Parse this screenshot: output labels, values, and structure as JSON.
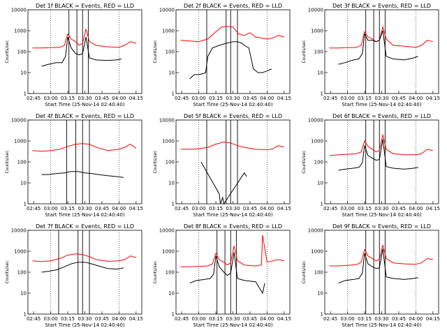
{
  "chart_data": [
    {
      "type": "line",
      "title": "Det 1f BLACK = Events, RED = LLD",
      "xlabel": "Start Time (25-Nov-14 02:40:40)",
      "ylabel": "Counts/sec",
      "xticks": [
        "02:45",
        "03:00",
        "03:15",
        "03:30",
        "03:45",
        "04:00",
        "04:15"
      ],
      "yticks": [
        "1",
        "10",
        "100",
        "1000",
        "10000"
      ],
      "ylim": [
        1,
        10000
      ],
      "yscale": "log",
      "xlim": [
        "02:40",
        "04:20"
      ],
      "grid": "dotted vertical lines at 03:00 and 04:00",
      "markers": [
        "03:16",
        "03:23",
        "03:28",
        "03:33"
      ],
      "series": [
        {
          "name": "LLD",
          "color": "#ff0000",
          "x": [
            "02:44",
            "02:52",
            "03:00",
            "03:08",
            "03:12",
            "03:15",
            "03:18",
            "03:22",
            "03:25",
            "03:28",
            "03:31",
            "03:34",
            "03:40",
            "03:50",
            "04:00",
            "04:05",
            "04:10",
            "04:15"
          ],
          "values": [
            150,
            150,
            155,
            160,
            200,
            700,
            400,
            300,
            200,
            250,
            1200,
            300,
            200,
            170,
            160,
            200,
            300,
            250
          ]
        },
        {
          "name": "Events",
          "color": "#000000",
          "x": [
            "02:52",
            "02:58",
            "03:05",
            "03:10",
            "03:13",
            "03:15",
            "03:18",
            "03:22",
            "03:25",
            "03:28",
            "03:31",
            "03:34",
            "03:40",
            "03:50",
            "03:58",
            "04:02"
          ],
          "values": [
            20,
            25,
            30,
            30,
            60,
            500,
            150,
            80,
            70,
            80,
            500,
            50,
            40,
            38,
            40,
            45
          ]
        }
      ]
    },
    {
      "type": "line",
      "title": "Det 2f BLACK = Events, RED = LLD",
      "xlabel": "Start Time (25-Nov-14 02:40:40)",
      "ylabel": "Counts/sec",
      "xticks": [
        "02:45",
        "03:00",
        "03:15",
        "03:30",
        "03:45",
        "04:00",
        "04:15"
      ],
      "yticks": [
        "1",
        "10",
        "100",
        "1000",
        "10000"
      ],
      "ylim": [
        1,
        10000
      ],
      "yscale": "log",
      "xlim": [
        "02:40",
        "04:20"
      ],
      "grid": "dotted vertical lines at 03:00 and 04:00",
      "markers": [
        "03:07",
        "03:24",
        "03:28",
        "03:34"
      ],
      "series": [
        {
          "name": "LLD",
          "color": "#ff0000",
          "x": [
            "02:44",
            "02:52",
            "03:00",
            "03:08",
            "03:15",
            "03:20",
            "03:25",
            "03:30",
            "03:35",
            "03:40",
            "03:45",
            "03:50",
            "04:00",
            "04:05",
            "04:10",
            "04:15"
          ],
          "values": [
            350,
            320,
            300,
            400,
            900,
            1500,
            1600,
            1500,
            700,
            600,
            800,
            500,
            400,
            450,
            600,
            500
          ]
        },
        {
          "name": "Events",
          "color": "#000000",
          "x": [
            "02:52",
            "02:56",
            "03:00",
            "03:04",
            "03:06",
            "03:08",
            "03:12",
            "03:18",
            "03:24",
            "03:30",
            "03:34",
            "03:38",
            "03:40",
            "03:44",
            "03:48",
            "03:52",
            "03:56",
            "04:00",
            "04:04"
          ],
          "values": [
            5,
            8,
            8,
            9,
            10,
            60,
            150,
            200,
            250,
            300,
            300,
            250,
            200,
            150,
            15,
            10,
            10,
            12,
            15
          ]
        }
      ]
    },
    {
      "type": "line",
      "title": "Det 3f BLACK = Events, RED = LLD",
      "xlabel": "Start Time (25-Nov-14 02:40:40)",
      "ylabel": "Counts/sec",
      "xticks": [
        "02:45",
        "03:00",
        "03:15",
        "03:30",
        "03:45",
        "04:00",
        "04:15"
      ],
      "yticks": [
        "1",
        "10",
        "100",
        "1000",
        "10000"
      ],
      "ylim": [
        1,
        10000
      ],
      "yscale": "log",
      "xlim": [
        "02:40",
        "04:20"
      ],
      "grid": "dotted vertical lines at 03:00 and 04:00",
      "markers": [
        "03:16",
        "03:23",
        "03:28",
        "03:33"
      ],
      "series": [
        {
          "name": "LLD",
          "color": "#ff0000",
          "x": [
            "02:44",
            "02:52",
            "03:00",
            "03:08",
            "03:12",
            "03:15",
            "03:18",
            "03:22",
            "03:25",
            "03:28",
            "03:31",
            "03:34",
            "03:40",
            "03:50",
            "04:00",
            "04:05",
            "04:10",
            "04:15"
          ],
          "values": [
            150,
            150,
            155,
            160,
            200,
            900,
            500,
            400,
            300,
            350,
            1500,
            400,
            200,
            180,
            160,
            200,
            350,
            300
          ]
        },
        {
          "name": "Events",
          "color": "#000000",
          "x": [
            "02:52",
            "02:58",
            "03:05",
            "03:10",
            "03:13",
            "03:15",
            "03:18",
            "03:22",
            "03:25",
            "03:28",
            "03:31",
            "03:34",
            "03:40",
            "03:50",
            "03:58",
            "04:02"
          ],
          "values": [
            25,
            30,
            40,
            45,
            80,
            700,
            350,
            350,
            300,
            350,
            1000,
            60,
            45,
            40,
            50,
            60
          ]
        }
      ]
    },
    {
      "type": "line",
      "title": "Det 4f BLACK = Events, RED = LLD",
      "xlabel": "Start Time (25-Nov-14 02:40:40)",
      "ylabel": "Counts/sec",
      "xticks": [
        "02:45",
        "03:00",
        "03:15",
        "03:30",
        "03:45",
        "04:00",
        "04:15"
      ],
      "yticks": [
        "1",
        "10",
        "100",
        "1000",
        "10000"
      ],
      "ylim": [
        1,
        10000
      ],
      "yscale": "log",
      "xlim": [
        "02:40",
        "04:20"
      ],
      "grid": "dotted vertical lines at 03:00 and 04:00",
      "markers": [
        "03:14",
        "03:22",
        "03:28",
        "03:34"
      ],
      "series": [
        {
          "name": "LLD",
          "color": "#ff0000",
          "x": [
            "02:44",
            "02:52",
            "03:00",
            "03:08",
            "03:15",
            "03:22",
            "03:28",
            "03:34",
            "03:40",
            "03:50",
            "04:00",
            "04:05",
            "04:10",
            "04:15"
          ],
          "values": [
            350,
            320,
            350,
            400,
            550,
            700,
            750,
            700,
            500,
            350,
            400,
            500,
            700,
            450
          ]
        },
        {
          "name": "Events",
          "color": "#000000",
          "x": [
            "02:52",
            "02:58",
            "03:05",
            "03:12",
            "03:18",
            "03:24",
            "03:30",
            "03:36",
            "03:42",
            "03:50",
            "03:58",
            "04:04"
          ],
          "values": [
            25,
            25,
            28,
            30,
            35,
            35,
            30,
            28,
            25,
            22,
            20,
            18
          ]
        }
      ]
    },
    {
      "type": "line",
      "title": "Det 5f BLACK = Events, RED = LLD",
      "xlabel": "Start Time (25-Nov-14 02:40:40)",
      "ylabel": "Counts/sec",
      "xticks": [
        "02:45",
        "03:00",
        "03:15",
        "03:30",
        "03:45",
        "04:00",
        "04:15"
      ],
      "yticks": [
        "1",
        "10",
        "100",
        "1000",
        "10000"
      ],
      "ylim": [
        1,
        10000
      ],
      "yscale": "log",
      "xlim": [
        "02:40",
        "04:20"
      ],
      "grid": "dotted vertical lines at 03:00 and 04:00",
      "markers": [
        "03:07",
        "03:24",
        "03:28",
        "03:34"
      ],
      "series": [
        {
          "name": "LLD",
          "color": "#ff0000",
          "x": [
            "02:44",
            "02:52",
            "03:00",
            "03:08",
            "03:15",
            "03:22",
            "03:28",
            "03:34",
            "03:40",
            "03:50",
            "04:00",
            "04:05",
            "04:10",
            "04:15"
          ],
          "values": [
            400,
            400,
            420,
            500,
            700,
            900,
            800,
            600,
            500,
            400,
            380,
            420,
            600,
            500
          ]
        },
        {
          "name": "Events",
          "color": "#000000",
          "x": [
            "03:02",
            "03:18",
            "03:19",
            "03:21",
            "03:22",
            "03:40",
            "03:42"
          ],
          "values": [
            100,
            3,
            1,
            2,
            1,
            30,
            20
          ]
        }
      ]
    },
    {
      "type": "line",
      "title": "Det 6f BLACK = Events, RED = LLD",
      "xlabel": "Start Time (25-Nov-14 02:40:40)",
      "ylabel": "Counts/sec",
      "xticks": [
        "02:45",
        "03:00",
        "03:15",
        "03:30",
        "03:45",
        "04:00",
        "04:15"
      ],
      "yticks": [
        "1",
        "10",
        "100",
        "1000",
        "10000"
      ],
      "ylim": [
        1,
        10000
      ],
      "yscale": "log",
      "xlim": [
        "02:40",
        "04:20"
      ],
      "grid": "dotted vertical lines at 03:00 and 04:00",
      "markers": [
        "03:16",
        "03:23",
        "03:28",
        "03:33"
      ],
      "series": [
        {
          "name": "LLD",
          "color": "#ff0000",
          "x": [
            "02:44",
            "02:52",
            "03:00",
            "03:08",
            "03:12",
            "03:15",
            "03:18",
            "03:22",
            "03:25",
            "03:28",
            "03:31",
            "03:34",
            "03:40",
            "03:50",
            "04:00",
            "04:05",
            "04:10",
            "04:15"
          ],
          "values": [
            200,
            220,
            230,
            250,
            300,
            1000,
            550,
            400,
            300,
            350,
            2000,
            400,
            250,
            220,
            220,
            250,
            400,
            350
          ]
        },
        {
          "name": "Events",
          "color": "#000000",
          "x": [
            "02:52",
            "02:58",
            "03:05",
            "03:10",
            "03:13",
            "03:15",
            "03:18",
            "03:22",
            "03:25",
            "03:28",
            "03:31",
            "03:34",
            "03:40",
            "03:50",
            "03:58",
            "04:02"
          ],
          "values": [
            40,
            45,
            50,
            55,
            90,
            600,
            200,
            150,
            120,
            130,
            1200,
            60,
            50,
            45,
            50,
            55
          ]
        }
      ]
    },
    {
      "type": "line",
      "title": "Det 7f BLACK = Events, RED = LLD",
      "xlabel": "Start Time (25-Nov-14 02:40:40)",
      "ylabel": "Counts/sec",
      "xticks": [
        "02:45",
        "03:00",
        "03:15",
        "03:30",
        "03:45",
        "04:00",
        "04:15"
      ],
      "yticks": [
        "1",
        "10",
        "100",
        "1000",
        "10000"
      ],
      "ylim": [
        1,
        10000
      ],
      "yscale": "log",
      "xlim": [
        "02:40",
        "04:20"
      ],
      "grid": "dotted vertical lines at 03:00 and 04:00",
      "markers": [
        "03:07",
        "03:24",
        "03:28",
        "03:34"
      ],
      "series": [
        {
          "name": "LLD",
          "color": "#ff0000",
          "x": [
            "02:44",
            "02:52",
            "03:00",
            "03:08",
            "03:15",
            "03:22",
            "03:28",
            "03:34",
            "03:40",
            "03:50",
            "04:00",
            "04:05",
            "04:10",
            "04:15"
          ],
          "values": [
            350,
            320,
            350,
            450,
            650,
            750,
            700,
            550,
            400,
            330,
            350,
            400,
            600,
            500
          ]
        },
        {
          "name": "Events",
          "color": "#000000",
          "x": [
            "02:52",
            "02:58",
            "03:05",
            "03:12",
            "03:18",
            "03:24",
            "03:30",
            "03:36",
            "03:42",
            "03:50",
            "03:58",
            "04:04"
          ],
          "values": [
            100,
            110,
            130,
            180,
            250,
            300,
            300,
            250,
            200,
            150,
            140,
            160
          ]
        }
      ]
    },
    {
      "type": "line",
      "title": "Det 8f BLACK = Events, RED = LLD",
      "xlabel": "Start Time (25-Nov-14 02:40:40)",
      "ylabel": "Counts/sec",
      "xticks": [
        "02:45",
        "03:00",
        "03:15",
        "03:30",
        "03:45",
        "04:00",
        "04:15"
      ],
      "yticks": [
        "1",
        "10",
        "100",
        "1000",
        "10000"
      ],
      "ylim": [
        1,
        10000
      ],
      "yscale": "log",
      "xlim": [
        "02:40",
        "04:20"
      ],
      "grid": "dotted vertical lines at 03:00 and 04:00",
      "markers": [
        "03:16",
        "03:23",
        "03:28",
        "03:33"
      ],
      "series": [
        {
          "name": "LLD",
          "color": "#ff0000",
          "x": [
            "02:44",
            "02:52",
            "03:00",
            "03:08",
            "03:12",
            "03:15",
            "03:18",
            "03:22",
            "03:25",
            "03:28",
            "03:31",
            "03:34",
            "03:40",
            "03:50",
            "03:55",
            "03:56",
            "04:00",
            "04:10",
            "04:15"
          ],
          "values": [
            180,
            180,
            190,
            200,
            250,
            800,
            400,
            300,
            220,
            280,
            1800,
            350,
            220,
            200,
            220,
            6000,
            300,
            400,
            350
          ]
        },
        {
          "name": "Events",
          "color": "#000000",
          "x": [
            "02:52",
            "02:58",
            "03:05",
            "03:10",
            "03:13",
            "03:15",
            "03:18",
            "03:22",
            "03:25",
            "03:28",
            "03:31",
            "03:34",
            "03:40",
            "03:50",
            "03:54",
            "03:56",
            "03:58"
          ],
          "values": [
            30,
            40,
            45,
            50,
            80,
            600,
            180,
            100,
            70,
            90,
            900,
            50,
            40,
            35,
            15,
            10,
            30
          ]
        }
      ]
    },
    {
      "type": "line",
      "title": "Det 9f BLACK = Events, RED = LLD",
      "xlabel": "Start Time (25-Nov-14 02:40:40)",
      "ylabel": "Counts/sec",
      "xticks": [
        "02:45",
        "03:00",
        "03:15",
        "03:30",
        "03:45",
        "04:00",
        "04:15"
      ],
      "yticks": [
        "1",
        "10",
        "100",
        "1000",
        "10000"
      ],
      "ylim": [
        1,
        10000
      ],
      "yscale": "log",
      "xlim": [
        "02:40",
        "04:20"
      ],
      "grid": "dotted vertical lines at 03:00 and 04:00",
      "markers": [
        "03:16",
        "03:23",
        "03:28",
        "03:33"
      ],
      "series": [
        {
          "name": "LLD",
          "color": "#ff0000",
          "x": [
            "02:44",
            "02:52",
            "03:00",
            "03:08",
            "03:12",
            "03:15",
            "03:18",
            "03:22",
            "03:25",
            "03:28",
            "03:31",
            "03:34",
            "03:40",
            "03:50",
            "04:00",
            "04:05",
            "04:10",
            "04:15"
          ],
          "values": [
            200,
            200,
            210,
            230,
            300,
            1200,
            600,
            450,
            350,
            400,
            2000,
            450,
            280,
            250,
            240,
            280,
            450,
            400
          ]
        },
        {
          "name": "Events",
          "color": "#000000",
          "x": [
            "02:52",
            "02:58",
            "03:05",
            "03:10",
            "03:13",
            "03:15",
            "03:18",
            "03:22",
            "03:25",
            "03:28",
            "03:31",
            "03:34",
            "03:40",
            "03:50",
            "03:58",
            "04:02"
          ],
          "values": [
            30,
            40,
            45,
            50,
            90,
            800,
            250,
            180,
            150,
            160,
            1300,
            60,
            50,
            45,
            50,
            55
          ]
        }
      ]
    }
  ]
}
